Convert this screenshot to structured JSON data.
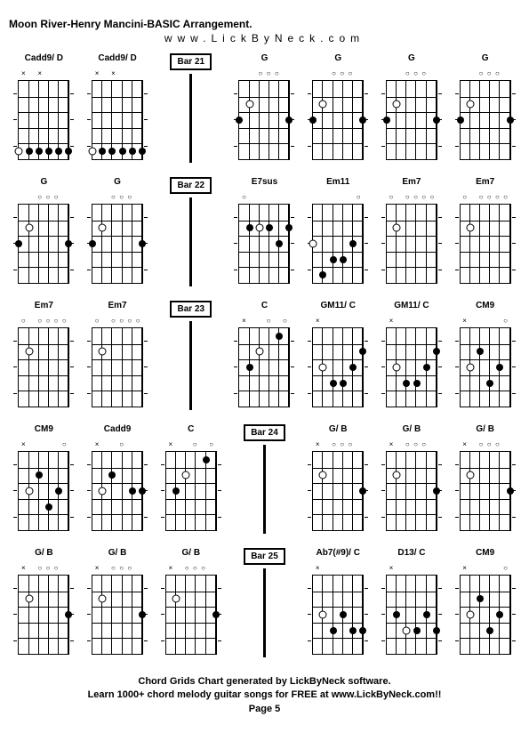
{
  "title": "Moon River-Henry Mancini-BASIC Arrangement.",
  "subtitle": "www.LickByNeck.com",
  "footer_line1": "Chord Grids Chart generated by LickByNeck software.",
  "footer_line2": "Learn 1000+ chord melody guitar songs for FREE at www.LickByNeck.com!!",
  "footer_line3": "Page 5",
  "rows": [
    {
      "cells": [
        {
          "type": "chord",
          "label": "Cadd9/ D",
          "nut": [
            "×",
            "",
            "×",
            "",
            "",
            ""
          ],
          "dots": [
            {
              "s": 0,
              "f": 5,
              "o": true
            },
            {
              "s": 1,
              "f": 5
            },
            {
              "s": 2,
              "f": 5
            },
            {
              "s": 3,
              "f": 5
            },
            {
              "s": 4,
              "f": 5
            },
            {
              "s": 5,
              "f": 5
            }
          ]
        },
        {
          "type": "chord",
          "label": "Cadd9/ D",
          "nut": [
            "×",
            "",
            "×",
            "",
            "",
            ""
          ],
          "dots": [
            {
              "s": 0,
              "f": 5,
              "o": true
            },
            {
              "s": 1,
              "f": 5
            },
            {
              "s": 2,
              "f": 5
            },
            {
              "s": 3,
              "f": 5
            },
            {
              "s": 4,
              "f": 5
            },
            {
              "s": 5,
              "f": 5
            }
          ]
        },
        {
          "type": "bar",
          "label": "Bar 21"
        },
        {
          "type": "chord",
          "label": "G",
          "nut": [
            "",
            "",
            "○",
            "○",
            "○",
            ""
          ],
          "dots": [
            {
              "s": 0,
              "f": 3
            },
            {
              "s": 1,
              "f": 2,
              "o": true
            },
            {
              "s": 5,
              "f": 3
            }
          ]
        },
        {
          "type": "chord",
          "label": "G",
          "nut": [
            "",
            "",
            "○",
            "○",
            "○",
            ""
          ],
          "dots": [
            {
              "s": 0,
              "f": 3
            },
            {
              "s": 1,
              "f": 2,
              "o": true
            },
            {
              "s": 5,
              "f": 3
            }
          ]
        },
        {
          "type": "chord",
          "label": "G",
          "nut": [
            "",
            "",
            "○",
            "○",
            "○",
            ""
          ],
          "dots": [
            {
              "s": 0,
              "f": 3
            },
            {
              "s": 1,
              "f": 2,
              "o": true
            },
            {
              "s": 5,
              "f": 3
            }
          ]
        },
        {
          "type": "chord",
          "label": "G",
          "nut": [
            "",
            "",
            "○",
            "○",
            "○",
            ""
          ],
          "dots": [
            {
              "s": 0,
              "f": 3
            },
            {
              "s": 1,
              "f": 2,
              "o": true
            },
            {
              "s": 5,
              "f": 3
            }
          ]
        }
      ]
    },
    {
      "cells": [
        {
          "type": "chord",
          "label": "G",
          "nut": [
            "",
            "",
            "○",
            "○",
            "○",
            ""
          ],
          "dots": [
            {
              "s": 0,
              "f": 3
            },
            {
              "s": 1,
              "f": 2,
              "o": true
            },
            {
              "s": 5,
              "f": 3
            }
          ]
        },
        {
          "type": "chord",
          "label": "G",
          "nut": [
            "",
            "",
            "○",
            "○",
            "○",
            ""
          ],
          "dots": [
            {
              "s": 0,
              "f": 3
            },
            {
              "s": 1,
              "f": 2,
              "o": true
            },
            {
              "s": 5,
              "f": 3
            }
          ]
        },
        {
          "type": "bar",
          "label": "Bar 22"
        },
        {
          "type": "chord",
          "label": "E7sus",
          "nut": [
            "○",
            "",
            "",
            "",
            "",
            ""
          ],
          "dots": [
            {
              "s": 1,
              "f": 2
            },
            {
              "s": 2,
              "f": 2,
              "o": true
            },
            {
              "s": 3,
              "f": 2
            },
            {
              "s": 4,
              "f": 3
            },
            {
              "s": 5,
              "f": 2
            }
          ]
        },
        {
          "type": "chord",
          "label": "Em11",
          "nut": [
            "",
            "",
            "",
            "",
            "",
            "○"
          ],
          "dots": [
            {
              "s": 0,
              "f": 3,
              "o": true
            },
            {
              "s": 1,
              "f": 5
            },
            {
              "s": 2,
              "f": 4
            },
            {
              "s": 3,
              "f": 4
            },
            {
              "s": 4,
              "f": 3
            }
          ]
        },
        {
          "type": "chord",
          "label": "Em7",
          "nut": [
            "○",
            "",
            "○",
            "○",
            "○",
            "○"
          ],
          "dots": [
            {
              "s": 1,
              "f": 2,
              "o": true
            }
          ]
        },
        {
          "type": "chord",
          "label": "Em7",
          "nut": [
            "○",
            "",
            "○",
            "○",
            "○",
            "○"
          ],
          "dots": [
            {
              "s": 1,
              "f": 2,
              "o": true
            }
          ]
        }
      ]
    },
    {
      "cells": [
        {
          "type": "chord",
          "label": "Em7",
          "nut": [
            "○",
            "",
            "○",
            "○",
            "○",
            "○"
          ],
          "dots": [
            {
              "s": 1,
              "f": 2,
              "o": true
            }
          ]
        },
        {
          "type": "chord",
          "label": "Em7",
          "nut": [
            "○",
            "",
            "○",
            "○",
            "○",
            "○"
          ],
          "dots": [
            {
              "s": 1,
              "f": 2,
              "o": true
            }
          ]
        },
        {
          "type": "bar",
          "label": "Bar 23"
        },
        {
          "type": "chord",
          "label": "C",
          "nut": [
            "×",
            "",
            "",
            "○",
            "",
            "○"
          ],
          "dots": [
            {
              "s": 1,
              "f": 3
            },
            {
              "s": 2,
              "f": 2,
              "o": true
            },
            {
              "s": 4,
              "f": 1
            }
          ]
        },
        {
          "type": "chord",
          "label": "GM11/ C",
          "nut": [
            "×",
            "",
            "",
            "",
            "",
            ""
          ],
          "dots": [
            {
              "s": 1,
              "f": 3,
              "o": true
            },
            {
              "s": 2,
              "f": 4
            },
            {
              "s": 3,
              "f": 4
            },
            {
              "s": 4,
              "f": 3
            },
            {
              "s": 5,
              "f": 2
            }
          ]
        },
        {
          "type": "chord",
          "label": "GM11/ C",
          "nut": [
            "×",
            "",
            "",
            "",
            "",
            ""
          ],
          "dots": [
            {
              "s": 1,
              "f": 3,
              "o": true
            },
            {
              "s": 2,
              "f": 4
            },
            {
              "s": 3,
              "f": 4
            },
            {
              "s": 4,
              "f": 3
            },
            {
              "s": 5,
              "f": 2
            }
          ]
        },
        {
          "type": "chord",
          "label": "CM9",
          "nut": [
            "×",
            "",
            "",
            "",
            "",
            "○"
          ],
          "dots": [
            {
              "s": 1,
              "f": 3,
              "o": true
            },
            {
              "s": 2,
              "f": 2
            },
            {
              "s": 3,
              "f": 4
            },
            {
              "s": 4,
              "f": 3
            }
          ]
        }
      ]
    },
    {
      "cells": [
        {
          "type": "chord",
          "label": "CM9",
          "nut": [
            "×",
            "",
            "",
            "",
            "",
            "○"
          ],
          "dots": [
            {
              "s": 1,
              "f": 3,
              "o": true
            },
            {
              "s": 2,
              "f": 2
            },
            {
              "s": 3,
              "f": 4
            },
            {
              "s": 4,
              "f": 3
            }
          ]
        },
        {
          "type": "chord",
          "label": "Cadd9",
          "nut": [
            "×",
            "",
            "",
            "○",
            "",
            ""
          ],
          "dots": [
            {
              "s": 1,
              "f": 3,
              "o": true
            },
            {
              "s": 2,
              "f": 2
            },
            {
              "s": 4,
              "f": 3
            },
            {
              "s": 5,
              "f": 3
            }
          ]
        },
        {
          "type": "chord",
          "label": "C",
          "nut": [
            "×",
            "",
            "",
            "○",
            "",
            "○"
          ],
          "dots": [
            {
              "s": 1,
              "f": 3
            },
            {
              "s": 2,
              "f": 2,
              "o": true
            },
            {
              "s": 4,
              "f": 1
            }
          ]
        },
        {
          "type": "bar",
          "label": "Bar 24"
        },
        {
          "type": "chord",
          "label": "G/ B",
          "nut": [
            "×",
            "",
            "○",
            "○",
            "○",
            ""
          ],
          "dots": [
            {
              "s": 1,
              "f": 2,
              "o": true
            },
            {
              "s": 5,
              "f": 3
            }
          ]
        },
        {
          "type": "chord",
          "label": "G/ B",
          "nut": [
            "×",
            "",
            "○",
            "○",
            "○",
            ""
          ],
          "dots": [
            {
              "s": 1,
              "f": 2,
              "o": true
            },
            {
              "s": 5,
              "f": 3
            }
          ]
        },
        {
          "type": "chord",
          "label": "G/ B",
          "nut": [
            "×",
            "",
            "○",
            "○",
            "○",
            ""
          ],
          "dots": [
            {
              "s": 1,
              "f": 2,
              "o": true
            },
            {
              "s": 5,
              "f": 3
            }
          ]
        }
      ]
    },
    {
      "cells": [
        {
          "type": "chord",
          "label": "G/ B",
          "nut": [
            "×",
            "",
            "○",
            "○",
            "○",
            ""
          ],
          "dots": [
            {
              "s": 1,
              "f": 2,
              "o": true
            },
            {
              "s": 5,
              "f": 3
            }
          ]
        },
        {
          "type": "chord",
          "label": "G/ B",
          "nut": [
            "×",
            "",
            "○",
            "○",
            "○",
            ""
          ],
          "dots": [
            {
              "s": 1,
              "f": 2,
              "o": true
            },
            {
              "s": 5,
              "f": 3
            }
          ]
        },
        {
          "type": "chord",
          "label": "G/ B",
          "nut": [
            "×",
            "",
            "○",
            "○",
            "○",
            ""
          ],
          "dots": [
            {
              "s": 1,
              "f": 2,
              "o": true
            },
            {
              "s": 5,
              "f": 3
            }
          ]
        },
        {
          "type": "bar",
          "label": "Bar 25"
        },
        {
          "type": "chord",
          "label": "Ab7(#9)/ C",
          "nut": [
            "×",
            "",
            "",
            "",
            "",
            ""
          ],
          "dots": [
            {
              "s": 1,
              "f": 3,
              "o": true
            },
            {
              "s": 2,
              "f": 4
            },
            {
              "s": 3,
              "f": 3
            },
            {
              "s": 4,
              "f": 4
            },
            {
              "s": 5,
              "f": 4
            }
          ]
        },
        {
          "type": "chord",
          "label": "D13/ C",
          "nut": [
            "×",
            "",
            "",
            "",
            "",
            ""
          ],
          "dots": [
            {
              "s": 1,
              "f": 3
            },
            {
              "s": 2,
              "f": 4,
              "o": true
            },
            {
              "s": 3,
              "f": 4
            },
            {
              "s": 4,
              "f": 3
            },
            {
              "s": 5,
              "f": 4
            }
          ]
        },
        {
          "type": "chord",
          "label": "CM9",
          "nut": [
            "×",
            "",
            "",
            "",
            "",
            "○"
          ],
          "dots": [
            {
              "s": 1,
              "f": 3,
              "o": true
            },
            {
              "s": 2,
              "f": 2
            },
            {
              "s": 3,
              "f": 4
            },
            {
              "s": 4,
              "f": 3
            }
          ]
        }
      ]
    }
  ],
  "style": {
    "num_frets": 5,
    "num_strings": 6,
    "diagram_w": 58,
    "diagram_h": 100,
    "colors": {
      "bg": "#ffffff",
      "line": "#000000"
    }
  }
}
